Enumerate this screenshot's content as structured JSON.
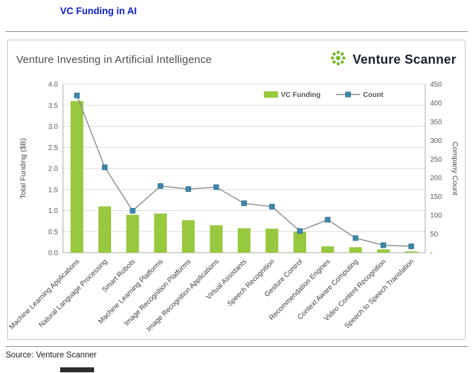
{
  "document": {
    "title": "VC Funding in AI",
    "source": "Source: Venture Scanner"
  },
  "chart_card": {
    "title": "Venture Investing in Artificial Intelligence",
    "logo_text": "Venture Scanner"
  },
  "chart_data": {
    "type": "bar",
    "combo": "bar + line, dual axis",
    "title": "Venture Investing in Artificial Intelligence",
    "grid": true,
    "legend_position": "top",
    "categories": [
      "Machine Learning Applications",
      "Natural Language Processing",
      "Smart Robots",
      "Machine Learning Platforms",
      "Image Recognition Platforms",
      "Image Recognition Applications",
      "Virtual Assistants",
      "Speech Recognition",
      "Gesture Control",
      "Recommendation Engines",
      "Context Aware Computing",
      "Video Content Recognition",
      "Speech to Speech Translation"
    ],
    "series": [
      {
        "name": "VC Funding",
        "type": "bar",
        "axis": "left",
        "color": "#97c83d",
        "values": [
          3.6,
          1.1,
          0.9,
          0.93,
          0.77,
          0.65,
          0.58,
          0.57,
          0.5,
          0.15,
          0.13,
          0.08,
          0.03
        ]
      },
      {
        "name": "Count",
        "type": "line",
        "axis": "right",
        "color": "#3a89ad",
        "values": [
          420,
          228,
          112,
          178,
          170,
          175,
          132,
          123,
          58,
          88,
          39,
          20,
          17
        ]
      }
    ],
    "left_axis": {
      "label": "Total Funding ($B)",
      "min": 0,
      "max": 4,
      "ticks": [
        "0.0",
        "0.5",
        "1.0",
        "1.5",
        "2.0",
        "2.5",
        "3.0",
        "3.5",
        "4.0"
      ]
    },
    "right_axis": {
      "label": "Company Count",
      "min": 0,
      "max": 450,
      "ticks": [
        "-",
        "50",
        "100",
        "150",
        "200",
        "250",
        "300",
        "350",
        "400",
        "450"
      ]
    }
  }
}
